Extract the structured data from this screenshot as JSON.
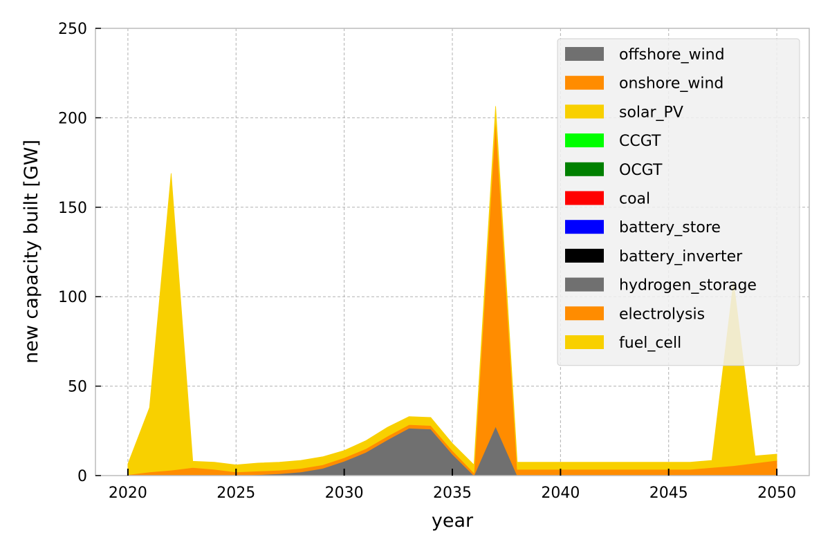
{
  "chart_data": {
    "type": "area",
    "stacked": true,
    "title": "",
    "xlabel": "year",
    "ylabel": "new capacity built [GW]",
    "xlim": [
      2018.5,
      2051.5
    ],
    "ylim": [
      0,
      250
    ],
    "xticks": [
      2020,
      2025,
      2030,
      2035,
      2040,
      2045,
      2050
    ],
    "yticks": [
      0,
      50,
      100,
      150,
      200,
      250
    ],
    "grid": true,
    "legend_position": "top-right",
    "x": [
      2020,
      2021,
      2022,
      2023,
      2024,
      2025,
      2026,
      2027,
      2028,
      2029,
      2030,
      2031,
      2032,
      2033,
      2034,
      2035,
      2036,
      2037,
      2038,
      2039,
      2040,
      2041,
      2042,
      2043,
      2044,
      2045,
      2046,
      2047,
      2048,
      2049,
      2050
    ],
    "series": [
      {
        "name": "offshore_wind",
        "color": "#707070",
        "values": [
          0,
          0,
          0,
          0,
          0,
          0,
          0.5,
          1,
          2,
          4,
          8,
          13,
          20,
          26.5,
          26,
          12,
          0,
          27.5,
          0,
          0,
          0,
          0,
          0,
          0,
          0,
          0,
          0,
          0,
          0,
          0,
          0
        ]
      },
      {
        "name": "onshore_wind",
        "color": "#ff8c00",
        "values": [
          0.5,
          2,
          3,
          4.5,
          3.5,
          2,
          2,
          2,
          2,
          2,
          2,
          2,
          2,
          2,
          2,
          2,
          1.5,
          172,
          3.5,
          3.5,
          3.5,
          3.5,
          3.5,
          3.5,
          3.5,
          3.5,
          3.5,
          4.5,
          5.5,
          7,
          8.5
        ]
      },
      {
        "name": "solar_PV",
        "color": "#f8d000",
        "values": [
          6,
          36,
          166,
          3.5,
          4,
          4,
          4.5,
          4.5,
          4.5,
          4.5,
          4,
          4.5,
          5,
          4.5,
          4.5,
          4,
          4.5,
          7,
          4,
          4,
          4,
          4,
          4,
          4,
          4,
          4,
          4,
          4,
          103,
          4,
          3.5
        ]
      },
      {
        "name": "CCGT",
        "color": "#00ff00",
        "values": [
          0,
          0,
          0,
          0,
          0,
          0,
          0,
          0,
          0,
          0,
          0,
          0,
          0,
          0,
          0,
          0,
          0,
          0,
          0,
          0,
          0,
          0,
          0,
          0,
          0,
          0,
          0,
          0,
          0,
          0,
          0
        ]
      },
      {
        "name": "OCGT",
        "color": "#008000",
        "values": [
          0,
          0,
          0,
          0,
          0,
          0,
          0,
          0,
          0,
          0,
          0,
          0,
          0,
          0,
          0,
          0,
          0,
          0,
          0,
          0,
          0,
          0,
          0,
          0,
          0,
          0,
          0,
          0,
          0,
          0,
          0
        ]
      },
      {
        "name": "coal",
        "color": "#ff0000",
        "values": [
          0,
          0,
          0,
          0,
          0,
          0,
          0,
          0,
          0,
          0,
          0,
          0,
          0,
          0,
          0,
          0,
          0,
          0,
          0,
          0,
          0,
          0,
          0,
          0,
          0,
          0,
          0,
          0,
          0,
          0,
          0
        ]
      },
      {
        "name": "battery_store",
        "color": "#0000ff",
        "values": [
          0,
          0,
          0,
          0,
          0,
          0,
          0,
          0,
          0,
          0,
          0,
          0,
          0,
          0,
          0,
          0,
          0,
          0,
          0,
          0,
          0,
          0,
          0,
          0,
          0,
          0,
          0,
          0,
          0,
          0,
          0
        ]
      },
      {
        "name": "battery_inverter",
        "color": "#000000",
        "values": [
          0,
          0,
          0,
          0,
          0,
          0,
          0,
          0,
          0,
          0,
          0,
          0,
          0,
          0,
          0,
          0,
          0,
          0,
          0,
          0,
          0,
          0,
          0,
          0,
          0,
          0,
          0,
          0,
          0,
          0,
          0
        ]
      },
      {
        "name": "hydrogen_storage",
        "color": "#707070",
        "values": [
          0,
          0,
          0,
          0,
          0,
          0,
          0,
          0,
          0,
          0,
          0,
          0,
          0,
          0,
          0,
          0,
          0,
          0,
          0,
          0,
          0,
          0,
          0,
          0,
          0,
          0,
          0,
          0,
          0,
          0,
          0
        ]
      },
      {
        "name": "electrolysis",
        "color": "#ff8c00",
        "values": [
          0,
          0,
          0,
          0,
          0,
          0,
          0,
          0,
          0,
          0,
          0,
          0,
          0,
          0,
          0,
          0,
          0,
          0,
          0,
          0,
          0,
          0,
          0,
          0,
          0,
          0,
          0,
          0,
          0,
          0,
          0
        ]
      },
      {
        "name": "fuel_cell",
        "color": "#f8d000",
        "values": [
          0,
          0,
          0,
          0,
          0,
          0,
          0,
          0,
          0,
          0,
          0,
          0,
          0,
          0,
          0,
          0,
          0,
          0,
          0,
          0,
          0,
          0,
          0,
          0,
          0,
          0,
          0,
          0,
          0,
          0,
          0
        ]
      }
    ]
  }
}
